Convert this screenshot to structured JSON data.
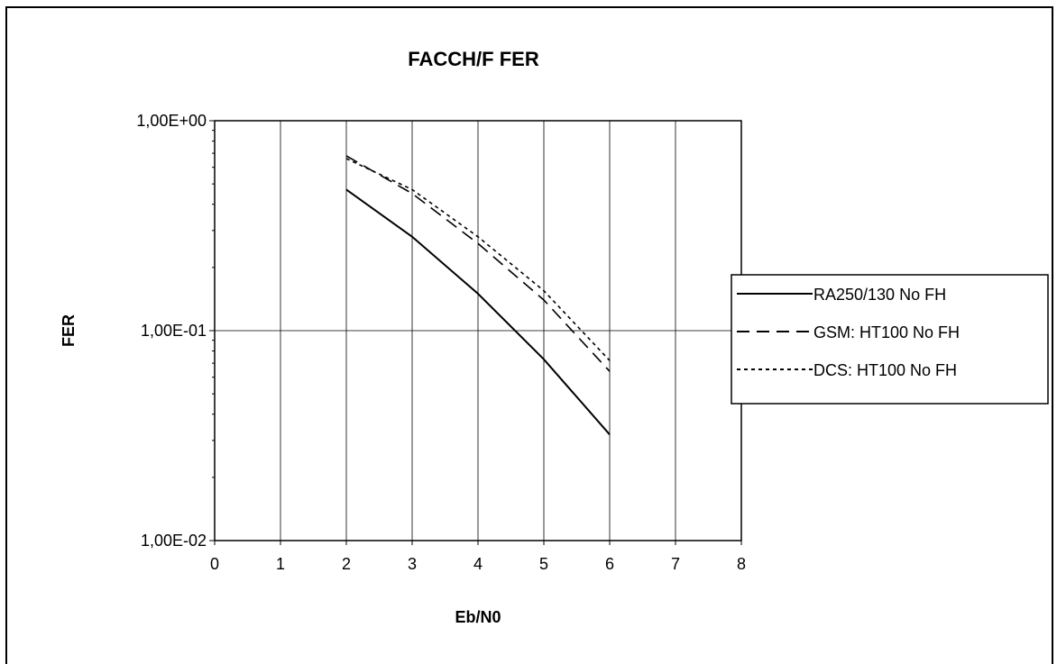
{
  "chart_data": {
    "type": "line",
    "title": "FACCH/F  FER",
    "xlabel": "Eb/N0",
    "ylabel": "FER",
    "xlim": [
      0,
      8
    ],
    "ylim": [
      0.01,
      1
    ],
    "yscale": "log",
    "x_ticks": [
      "0",
      "1",
      "2",
      "3",
      "4",
      "5",
      "6",
      "7",
      "8"
    ],
    "y_ticks": [
      "1,00E-02",
      "1,00E-01",
      "1,00E+00"
    ],
    "grid": "vertical at each x tick, horizontal at decades",
    "legend_position": "right",
    "series": [
      {
        "name": "RA250/130  No FH",
        "style": "solid",
        "color": "#000000",
        "x": [
          2,
          3,
          4,
          5,
          6
        ],
        "y": [
          0.47,
          0.28,
          0.15,
          0.073,
          0.032
        ]
      },
      {
        "name": "GSM:  HT100  No FH",
        "style": "dashed",
        "color": "#000000",
        "x": [
          2,
          3,
          4,
          5,
          6
        ],
        "y": [
          0.68,
          0.45,
          0.26,
          0.14,
          0.064
        ]
      },
      {
        "name": "DCS:  HT100 No FH",
        "style": "dotted",
        "color": "#000000",
        "x": [
          2,
          3,
          4,
          5,
          6
        ],
        "y": [
          0.66,
          0.47,
          0.28,
          0.155,
          0.072
        ]
      }
    ]
  }
}
